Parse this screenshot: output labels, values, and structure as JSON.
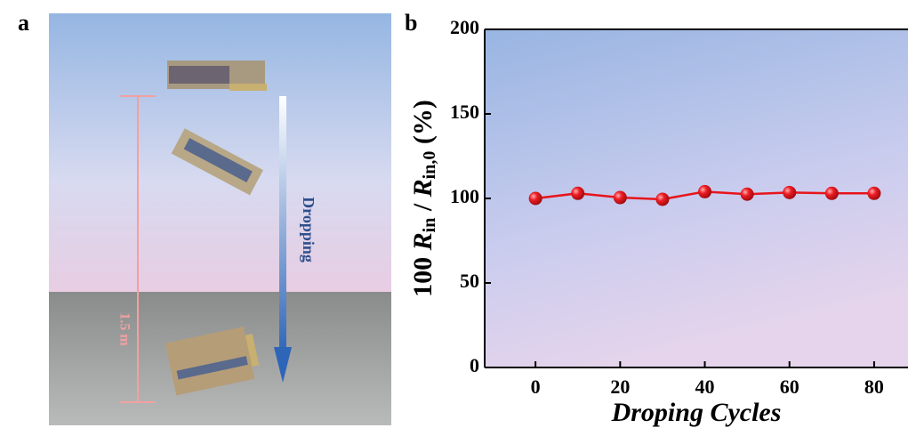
{
  "panel_labels": [
    "a",
    "b"
  ],
  "illustration": {
    "height_label": "1.5 m",
    "arrow_label": "Dropping"
  },
  "chart_data": {
    "type": "line",
    "ylabel_parts": [
      "100 ",
      "R",
      "in",
      " / ",
      "R",
      "in,0",
      " (%)"
    ],
    "xlabel": "Droping Cycles",
    "x": [
      0,
      10,
      20,
      30,
      40,
      50,
      60,
      70,
      80
    ],
    "series": [
      {
        "color": "#e8141c",
        "values": [
          100,
          103,
          100.5,
          99.5,
          104,
          102.5,
          103.5,
          103,
          103
        ]
      }
    ],
    "xlim": [
      -12,
      88
    ],
    "ylim": [
      0,
      200
    ],
    "xticks": [
      0,
      20,
      40,
      60,
      80
    ],
    "yticks": [
      0,
      50,
      100,
      150,
      200
    ]
  }
}
